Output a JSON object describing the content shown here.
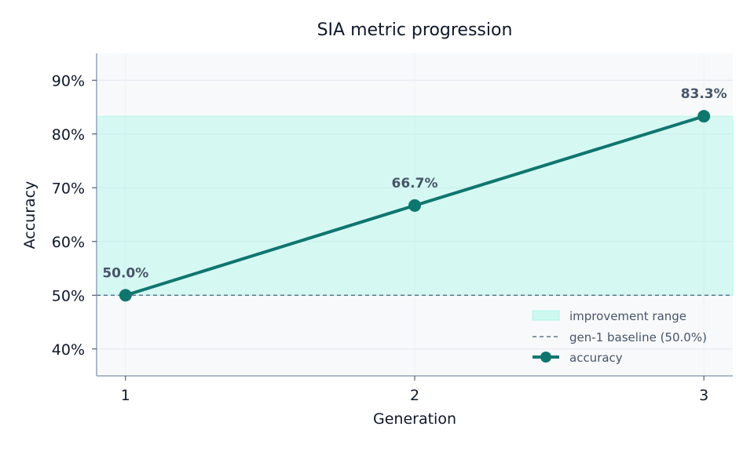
{
  "chart_data": {
    "type": "line",
    "title": "SIA metric progression",
    "xlabel": "Generation",
    "ylabel": "Accuracy",
    "x": [
      1,
      2,
      3
    ],
    "x_tick_labels": [
      "1",
      "2",
      "3"
    ],
    "xlim": [
      0.9,
      3.1
    ],
    "ylim": [
      35,
      95
    ],
    "y_ticks": [
      40,
      50,
      60,
      70,
      80,
      90
    ],
    "y_tick_labels": [
      "40%",
      "50%",
      "60%",
      "70%",
      "80%",
      "90%"
    ],
    "series": [
      {
        "name": "accuracy",
        "values": [
          50.0,
          66.7,
          83.3
        ],
        "data_labels": [
          "50.0%",
          "66.7%",
          "83.3%"
        ],
        "color": "#0f766e"
      }
    ],
    "baseline": {
      "name": "gen-1 baseline (50.0%)",
      "value": 50.0,
      "color": "#64748b"
    },
    "improvement_band": {
      "name": "improvement range",
      "from": 50.0,
      "to": 83.3,
      "color": "#99f6e4"
    },
    "legend": {
      "position": "lower-right",
      "entries": [
        "improvement range",
        "gen-1 baseline (50.0%)",
        "accuracy"
      ]
    },
    "grid": true,
    "colors": {
      "plot_background": "#f8f9fa",
      "grid": "#e2e8f0",
      "axis": "#94a3b8",
      "label_text": "#475569"
    }
  }
}
